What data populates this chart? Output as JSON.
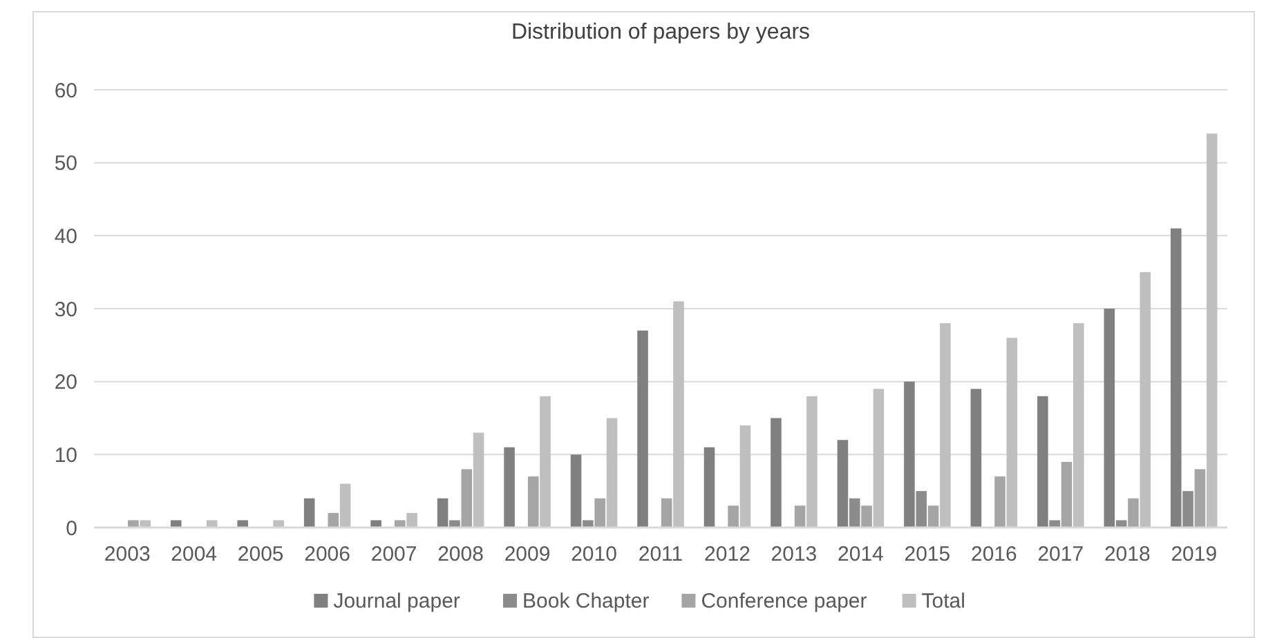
{
  "chart_data": {
    "type": "bar",
    "title": "Distribution of papers by years",
    "categories": [
      "2003",
      "2004",
      "2005",
      "2006",
      "2007",
      "2008",
      "2009",
      "2010",
      "2011",
      "2012",
      "2013",
      "2014",
      "2015",
      "2016",
      "2017",
      "2018",
      "2019"
    ],
    "series": [
      {
        "name": "Journal paper",
        "color": "#808080",
        "values": [
          0,
          1,
          1,
          4,
          1,
          4,
          11,
          10,
          27,
          11,
          15,
          12,
          20,
          19,
          18,
          30,
          41
        ]
      },
      {
        "name": "Book Chapter",
        "color": "#8c8c8c",
        "values": [
          0,
          0,
          0,
          0,
          0,
          1,
          0,
          1,
          0,
          0,
          0,
          4,
          5,
          0,
          1,
          1,
          5
        ]
      },
      {
        "name": "Conference paper",
        "color": "#a5a5a5",
        "values": [
          1,
          0,
          0,
          2,
          1,
          8,
          7,
          4,
          4,
          3,
          3,
          3,
          3,
          7,
          9,
          4,
          8
        ]
      },
      {
        "name": "Total",
        "color": "#bfbfbf",
        "values": [
          1,
          1,
          1,
          6,
          2,
          13,
          18,
          15,
          31,
          14,
          18,
          19,
          28,
          26,
          28,
          35,
          54
        ]
      }
    ],
    "ylim": [
      0,
      60
    ],
    "yticks": [
      0,
      10,
      20,
      30,
      40,
      50,
      60
    ],
    "grid": "y",
    "legend": "bottom"
  }
}
